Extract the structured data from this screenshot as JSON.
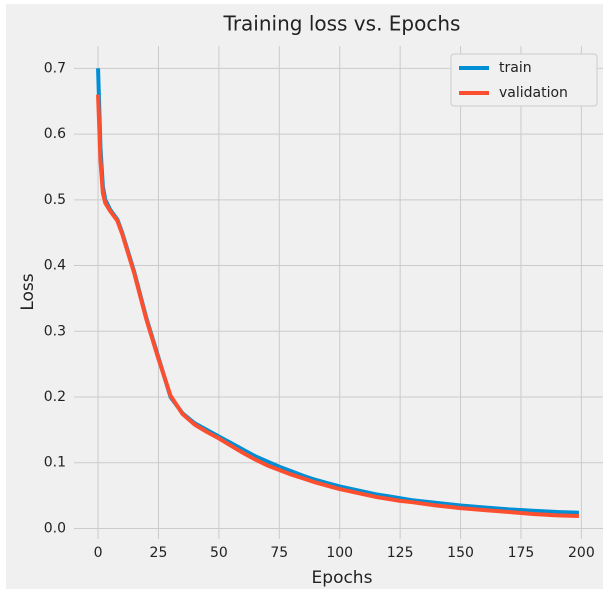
{
  "chart_data": {
    "type": "line",
    "title": "Training loss vs. Epochs",
    "x_label": "Epochs",
    "y_label": "Loss",
    "x": [
      0,
      1,
      2,
      3,
      5,
      8,
      10,
      15,
      20,
      25,
      30,
      35,
      40,
      45,
      50,
      55,
      60,
      65,
      70,
      75,
      80,
      85,
      90,
      95,
      100,
      105,
      110,
      115,
      120,
      125,
      130,
      140,
      150,
      160,
      170,
      180,
      190,
      199
    ],
    "series": [
      {
        "name": "train",
        "color": "#008fd5",
        "values": [
          0.7,
          0.58,
          0.52,
          0.5,
          0.485,
          0.47,
          0.45,
          0.39,
          0.32,
          0.26,
          0.2,
          0.175,
          0.16,
          0.15,
          0.14,
          0.13,
          0.12,
          0.11,
          0.102,
          0.094,
          0.087,
          0.08,
          0.074,
          0.069,
          0.064,
          0.06,
          0.056,
          0.052,
          0.049,
          0.046,
          0.043,
          0.039,
          0.035,
          0.032,
          0.029,
          0.027,
          0.025,
          0.024
        ]
      },
      {
        "name": "validation",
        "color": "#fc4f30",
        "values": [
          0.66,
          0.56,
          0.51,
          0.495,
          0.483,
          0.468,
          0.448,
          0.388,
          0.318,
          0.258,
          0.202,
          0.174,
          0.158,
          0.147,
          0.137,
          0.126,
          0.115,
          0.105,
          0.096,
          0.089,
          0.082,
          0.076,
          0.07,
          0.065,
          0.06,
          0.056,
          0.052,
          0.048,
          0.045,
          0.042,
          0.04,
          0.035,
          0.031,
          0.028,
          0.025,
          0.022,
          0.02,
          0.019
        ]
      }
    ],
    "xlim": [
      -9.95,
      208.95
    ],
    "ylim": [
      -0.016,
      0.734
    ],
    "xticks": [
      0,
      25,
      50,
      75,
      100,
      125,
      150,
      175,
      200
    ],
    "yticks": [
      {
        "value": 0,
        "label": "0.0"
      },
      0.1,
      0.2,
      0.3,
      0.4,
      0.5,
      0.6,
      0.7
    ],
    "grid": true,
    "legend": "upper right"
  }
}
